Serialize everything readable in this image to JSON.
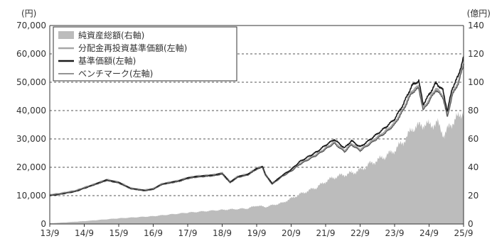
{
  "chart_data": {
    "type": "line",
    "y_left": {
      "unit_label": "(円)",
      "range": [
        0,
        70000
      ],
      "ticks": [
        "0",
        "10,000",
        "20,000",
        "30,000",
        "40,000",
        "50,000",
        "60,000",
        "70,000"
      ]
    },
    "y_right": {
      "unit_label": "(億円)",
      "range": [
        0,
        140
      ],
      "ticks": [
        "0",
        "20",
        "40",
        "60",
        "80",
        "100",
        "120",
        "140"
      ]
    },
    "x_tick_labels": [
      "13/9",
      "14/9",
      "15/9",
      "16/9",
      "17/9",
      "18/9",
      "19/9",
      "20/9",
      "21/9",
      "22/9",
      "23/9",
      "24/9",
      "25/9"
    ],
    "x_range": [
      2013.75,
      2025.75
    ],
    "grid": "horizontal dashed",
    "legend_placement": "top-left",
    "colors": {
      "net_assets": "#bcbcbc",
      "reinvested_nav": "#a8a8a8",
      "nav": "#1a1a1a",
      "benchmark": "#555555"
    },
    "series": [
      {
        "name": "純資産総額(右軸)",
        "key": "net_assets",
        "style": "area",
        "axis": "right",
        "points": [
          [
            2013.75,
            0.5
          ],
          [
            2014.75,
            2
          ],
          [
            2015.75,
            4
          ],
          [
            2016.75,
            5.5
          ],
          [
            2017.75,
            8
          ],
          [
            2018.75,
            10
          ],
          [
            2019.5,
            11
          ],
          [
            2019.75,
            13
          ],
          [
            2020.0,
            12
          ],
          [
            2020.5,
            15
          ],
          [
            2020.75,
            18
          ],
          [
            2021.0,
            21
          ],
          [
            2021.5,
            26
          ],
          [
            2021.75,
            30
          ],
          [
            2022.0,
            33
          ],
          [
            2022.5,
            36
          ],
          [
            2022.75,
            38
          ],
          [
            2023.0,
            42
          ],
          [
            2023.5,
            48
          ],
          [
            2023.75,
            52
          ],
          [
            2024.0,
            58
          ],
          [
            2024.3,
            68
          ],
          [
            2024.6,
            70
          ],
          [
            2024.75,
            70
          ],
          [
            2025.0,
            71
          ],
          [
            2025.2,
            62
          ],
          [
            2025.35,
            70
          ],
          [
            2025.5,
            73
          ],
          [
            2025.75,
            80
          ]
        ]
      },
      {
        "name": "分配金再投資基準価額(左軸)",
        "key": "reinvested_nav",
        "style": "line",
        "axis": "left",
        "points": [
          [
            2013.75,
            10300
          ],
          [
            2014.0,
            10600
          ],
          [
            2014.5,
            11700
          ],
          [
            2014.75,
            12800
          ],
          [
            2015.0,
            13800
          ],
          [
            2015.4,
            15600
          ],
          [
            2015.75,
            14700
          ],
          [
            2016.1,
            12600
          ],
          [
            2016.5,
            11900
          ],
          [
            2016.75,
            12400
          ],
          [
            2017.0,
            14100
          ],
          [
            2017.5,
            15300
          ],
          [
            2017.75,
            16300
          ],
          [
            2018.0,
            16800
          ],
          [
            2018.5,
            17300
          ],
          [
            2018.75,
            17900
          ],
          [
            2018.98,
            14800
          ],
          [
            2019.2,
            16700
          ],
          [
            2019.5,
            17600
          ],
          [
            2019.75,
            19600
          ],
          [
            2019.92,
            20300
          ],
          [
            2020.0,
            17500
          ],
          [
            2020.2,
            14300
          ],
          [
            2020.5,
            17000
          ],
          [
            2020.75,
            18800
          ],
          [
            2021.0,
            21300
          ],
          [
            2021.5,
            24600
          ],
          [
            2021.75,
            26700
          ],
          [
            2022.0,
            28800
          ],
          [
            2022.3,
            25800
          ],
          [
            2022.5,
            28300
          ],
          [
            2022.75,
            26200
          ],
          [
            2023.0,
            28300
          ],
          [
            2023.5,
            32800
          ],
          [
            2023.75,
            35500
          ],
          [
            2024.0,
            40500
          ],
          [
            2024.25,
            46800
          ],
          [
            2024.45,
            48500
          ],
          [
            2024.58,
            40500
          ],
          [
            2024.75,
            43800
          ],
          [
            2024.95,
            47800
          ],
          [
            2025.15,
            45200
          ],
          [
            2025.28,
            38200
          ],
          [
            2025.42,
            45800
          ],
          [
            2025.6,
            50200
          ],
          [
            2025.75,
            56500
          ]
        ]
      },
      {
        "name": "基準価額(左軸)",
        "key": "nav",
        "style": "line",
        "axis": "left",
        "points": [
          [
            2013.75,
            10000
          ],
          [
            2014.0,
            10400
          ],
          [
            2014.5,
            11500
          ],
          [
            2014.75,
            12600
          ],
          [
            2015.0,
            13700
          ],
          [
            2015.4,
            15500
          ],
          [
            2015.75,
            14600
          ],
          [
            2016.1,
            12500
          ],
          [
            2016.5,
            11800
          ],
          [
            2016.75,
            12300
          ],
          [
            2017.0,
            14000
          ],
          [
            2017.5,
            15200
          ],
          [
            2017.75,
            16200
          ],
          [
            2018.0,
            16700
          ],
          [
            2018.5,
            17200
          ],
          [
            2018.75,
            17800
          ],
          [
            2018.98,
            14700
          ],
          [
            2019.2,
            16600
          ],
          [
            2019.5,
            17500
          ],
          [
            2019.75,
            19500
          ],
          [
            2019.92,
            20200
          ],
          [
            2020.0,
            17500
          ],
          [
            2020.2,
            14200
          ],
          [
            2020.5,
            17200
          ],
          [
            2020.75,
            19200
          ],
          [
            2021.0,
            22000
          ],
          [
            2021.5,
            25500
          ],
          [
            2021.75,
            27800
          ],
          [
            2022.0,
            29800
          ],
          [
            2022.3,
            26800
          ],
          [
            2022.5,
            29400
          ],
          [
            2022.75,
            27200
          ],
          [
            2023.0,
            29400
          ],
          [
            2023.5,
            34200
          ],
          [
            2023.75,
            37000
          ],
          [
            2024.0,
            42200
          ],
          [
            2024.25,
            48800
          ],
          [
            2024.45,
            50500
          ],
          [
            2024.58,
            42200
          ],
          [
            2024.75,
            45600
          ],
          [
            2024.95,
            49800
          ],
          [
            2025.15,
            47200
          ],
          [
            2025.28,
            39800
          ],
          [
            2025.42,
            47800
          ],
          [
            2025.6,
            52300
          ],
          [
            2025.75,
            59000
          ]
        ]
      },
      {
        "name": "ベンチマーク(左軸)",
        "key": "benchmark",
        "style": "line",
        "axis": "left",
        "points": [
          [
            2013.75,
            10200
          ],
          [
            2014.0,
            10500
          ],
          [
            2014.5,
            11600
          ],
          [
            2014.75,
            12700
          ],
          [
            2015.0,
            13600
          ],
          [
            2015.4,
            15300
          ],
          [
            2015.75,
            14400
          ],
          [
            2016.1,
            12400
          ],
          [
            2016.5,
            11700
          ],
          [
            2016.75,
            12200
          ],
          [
            2017.0,
            13900
          ],
          [
            2017.5,
            15000
          ],
          [
            2017.75,
            16000
          ],
          [
            2018.0,
            16500
          ],
          [
            2018.5,
            17000
          ],
          [
            2018.75,
            17600
          ],
          [
            2018.98,
            14500
          ],
          [
            2019.2,
            16400
          ],
          [
            2019.5,
            17300
          ],
          [
            2019.75,
            19300
          ],
          [
            2019.92,
            20000
          ],
          [
            2020.0,
            17200
          ],
          [
            2020.2,
            14000
          ],
          [
            2020.5,
            16800
          ],
          [
            2020.75,
            18600
          ],
          [
            2021.0,
            21000
          ],
          [
            2021.5,
            24300
          ],
          [
            2021.75,
            26400
          ],
          [
            2022.0,
            28400
          ],
          [
            2022.3,
            25400
          ],
          [
            2022.5,
            27900
          ],
          [
            2022.75,
            25800
          ],
          [
            2023.0,
            27900
          ],
          [
            2023.5,
            32300
          ],
          [
            2023.75,
            35000
          ],
          [
            2024.0,
            40000
          ],
          [
            2024.25,
            46200
          ],
          [
            2024.45,
            47900
          ],
          [
            2024.58,
            40000
          ],
          [
            2024.75,
            43200
          ],
          [
            2024.95,
            47200
          ],
          [
            2025.15,
            44600
          ],
          [
            2025.28,
            37700
          ],
          [
            2025.42,
            45200
          ],
          [
            2025.6,
            49600
          ],
          [
            2025.75,
            55800
          ]
        ]
      }
    ]
  }
}
